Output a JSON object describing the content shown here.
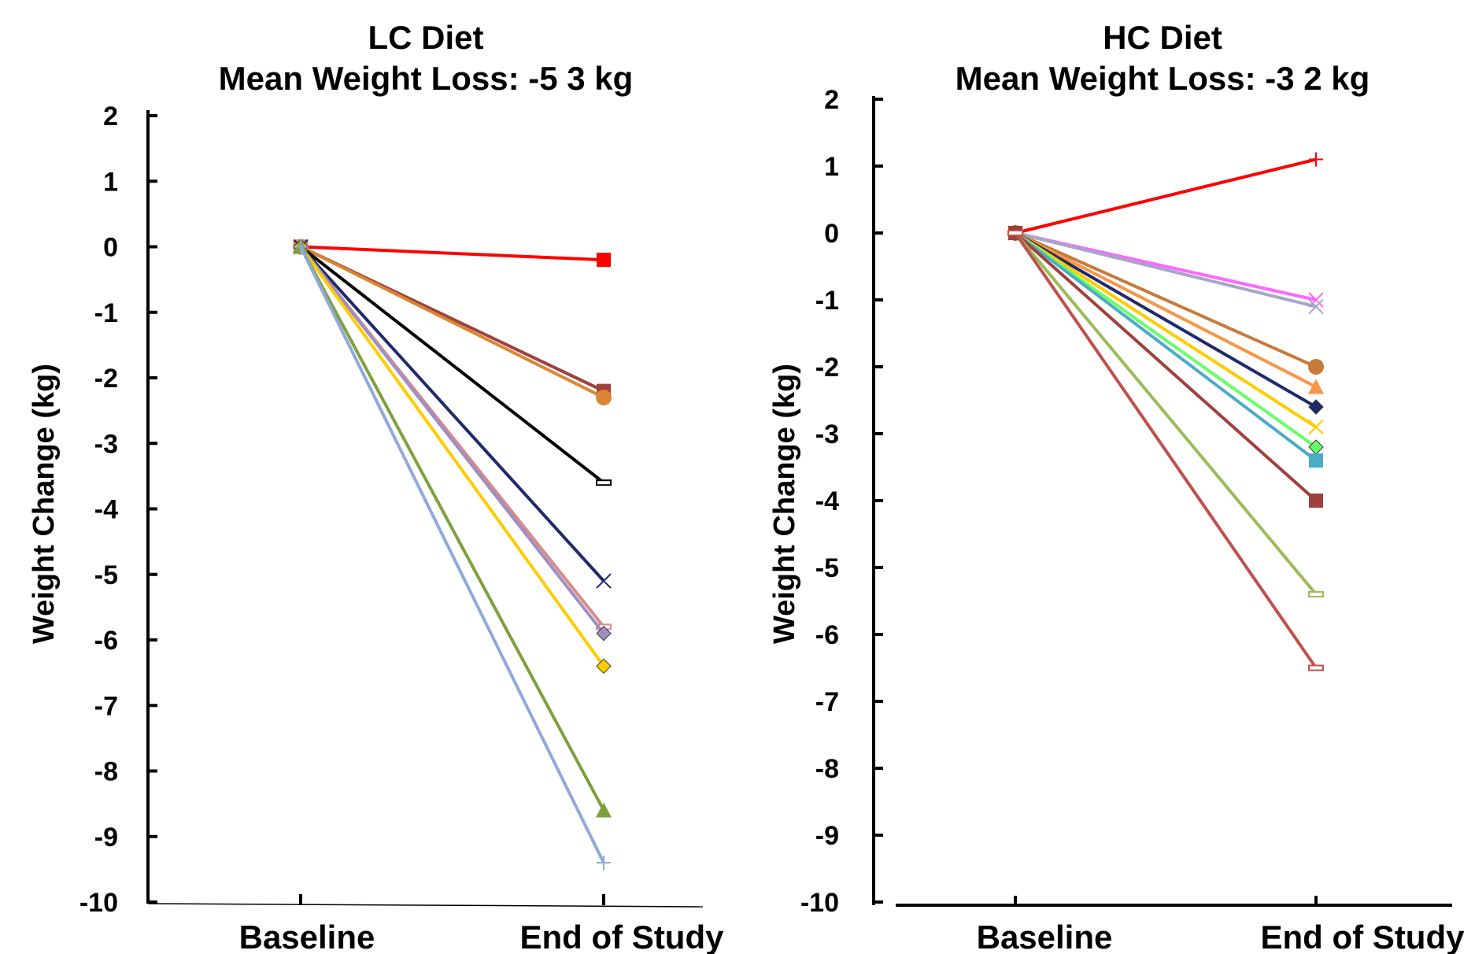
{
  "chart_data": [
    {
      "type": "line",
      "title": "LC  Diet",
      "subtitle": "Mean Weight Loss: -5    3 kg",
      "xlabel": "",
      "ylabel": "Weight Change (kg)",
      "categories": [
        "Baseline",
        "End of Study"
      ],
      "ylim": [
        -10,
        2
      ],
      "yticks": [
        "2",
        "1",
        "0",
        "-1",
        "-2",
        "-3",
        "-4",
        "-5",
        "-6",
        "-7",
        "-8",
        "-9",
        "-10"
      ],
      "grid": false,
      "legend": "none",
      "series": [
        {
          "values": [
            0,
            -0.2
          ],
          "color": "#ff0000",
          "marker": "square"
        },
        {
          "values": [
            0,
            -2.2
          ],
          "color": "#a0403c",
          "marker": "square"
        },
        {
          "values": [
            0,
            -2.3
          ],
          "color": "#d98634",
          "marker": "circle"
        },
        {
          "values": [
            0,
            -3.6
          ],
          "color": "#000000",
          "marker": "dash"
        },
        {
          "values": [
            0,
            -5.1
          ],
          "color": "#1f2a6b",
          "marker": "x"
        },
        {
          "values": [
            0,
            -5.8
          ],
          "color": "#d98a8a",
          "marker": "dash"
        },
        {
          "values": [
            0,
            -5.9
          ],
          "color": "#9e8fc2",
          "marker": "diamond"
        },
        {
          "values": [
            0,
            -6.4
          ],
          "color": "#ffcc00",
          "marker": "diamond"
        },
        {
          "values": [
            0,
            -8.6
          ],
          "color": "#7fa03c",
          "marker": "triangle"
        },
        {
          "values": [
            0,
            -9.4
          ],
          "color": "#8faad9",
          "marker": "plus"
        }
      ]
    },
    {
      "type": "line",
      "title": "HC Diet",
      "subtitle": "Mean Weight Loss: -3    2 kg",
      "xlabel": "",
      "ylabel": "Weight Change (kg)",
      "categories": [
        "Baseline",
        "End of Study"
      ],
      "ylim": [
        -10,
        2
      ],
      "yticks": [
        "2",
        "1",
        "0",
        "-1",
        "-2",
        "-3",
        "-4",
        "-5",
        "-6",
        "-7",
        "-8",
        "-9",
        "-10"
      ],
      "grid": false,
      "legend": "none",
      "series": [
        {
          "values": [
            0,
            1.1
          ],
          "color": "#ff0000",
          "marker": "plus"
        },
        {
          "values": [
            0,
            -1.0
          ],
          "color": "#ff66ff",
          "marker": "x"
        },
        {
          "values": [
            0,
            -1.1
          ],
          "color": "#a6a6c8",
          "marker": "x"
        },
        {
          "values": [
            0,
            -2.0
          ],
          "color": "#c87a3a",
          "marker": "circle"
        },
        {
          "values": [
            0,
            -2.3
          ],
          "color": "#f79646",
          "marker": "triangle"
        },
        {
          "values": [
            0,
            -2.6
          ],
          "color": "#1f2a6b",
          "marker": "diamond"
        },
        {
          "values": [
            0,
            -2.9
          ],
          "color": "#ffcc00",
          "marker": "x"
        },
        {
          "values": [
            0,
            -3.2
          ],
          "color": "#66ff66",
          "marker": "diamond"
        },
        {
          "values": [
            0,
            -3.4
          ],
          "color": "#4bacc6",
          "marker": "square"
        },
        {
          "values": [
            0,
            -4.0
          ],
          "color": "#a0403c",
          "marker": "square"
        },
        {
          "values": [
            0,
            -5.4
          ],
          "color": "#9bbb59",
          "marker": "dash"
        },
        {
          "values": [
            0,
            -6.5
          ],
          "color": "#c0504d",
          "marker": "dash"
        }
      ]
    }
  ]
}
